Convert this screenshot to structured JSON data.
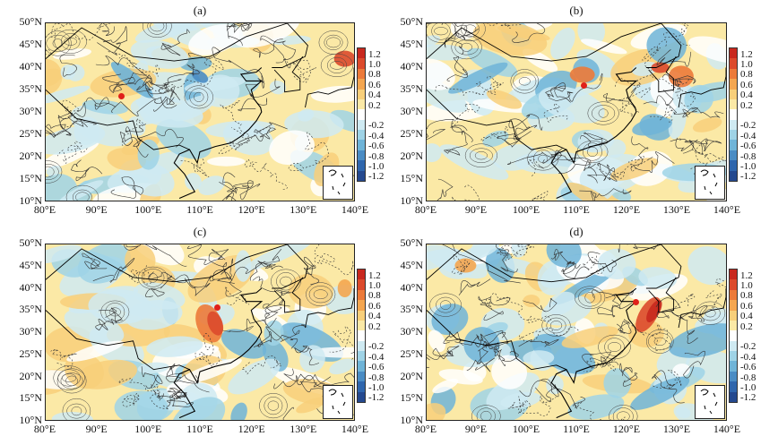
{
  "panels": [
    {
      "title": "(a)"
    },
    {
      "title": "(b)"
    },
    {
      "title": "(c)"
    },
    {
      "title": "(d)"
    }
  ],
  "lat_labels": [
    "50°N",
    "45°N",
    "40°N",
    "35°N",
    "30°N",
    "25°N",
    "20°N",
    "15°N",
    "10°N"
  ],
  "lon_labels": [
    "80°E",
    "90°E",
    "100°E",
    "110°E",
    "120°E",
    "130°E",
    "140°E"
  ],
  "colorbar": {
    "labels": [
      "1.2",
      "1.0",
      "0.8",
      "0.6",
      "0.4",
      "0.2",
      "-0.2",
      "-0.4",
      "-0.6",
      "-0.8",
      "-1.0",
      "-1.2"
    ],
    "colors": [
      "#c8281e",
      "#dc4a2c",
      "#ec7a3a",
      "#f4a650",
      "#f8cf7a",
      "#fbe9a6",
      "#ffffff",
      "#cfeaf2",
      "#9fd3e6",
      "#6fb4d8",
      "#4a8cc4",
      "#2f66ad",
      "#24498f"
    ]
  },
  "map_colors": {
    "land_warm": "#fbe9a6",
    "land_cool": "#cfeaf2",
    "ocean": "#ffffff"
  }
}
